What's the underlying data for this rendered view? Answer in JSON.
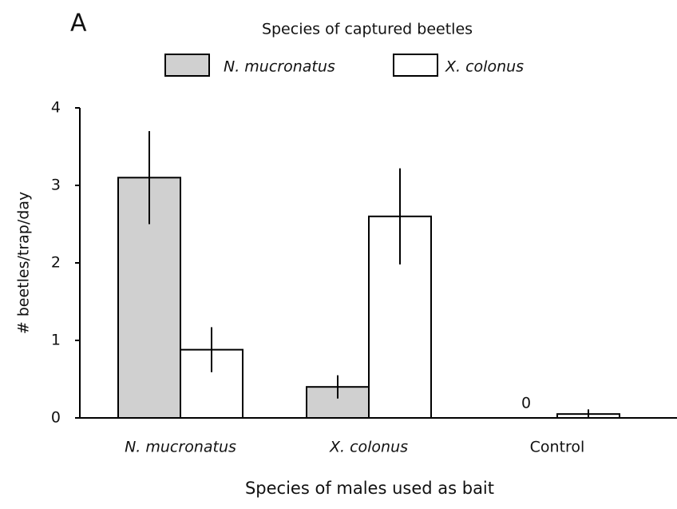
{
  "chart_data": {
    "type": "bar",
    "panel_label": "A",
    "legend_title": "Species of captured beetles",
    "x_label": "Species of males used as bait",
    "y_label": "# beetles/trap/day",
    "categories": [
      "N. mucronatus",
      "X. colonus",
      "Control"
    ],
    "series": [
      {
        "name": "N. mucronatus",
        "color": "#d0d0d0",
        "values": [
          3.1,
          0.4,
          0
        ],
        "errors": [
          0.6,
          0.15,
          0
        ]
      },
      {
        "name": "X. colonus",
        "color": "#ffffff",
        "values": [
          0.88,
          2.6,
          0.05
        ],
        "errors": [
          0.29,
          0.62,
          0.06
        ]
      }
    ],
    "ylim": [
      0,
      4
    ],
    "yticks": [
      0,
      1,
      2,
      3,
      4
    ],
    "grid": false
  }
}
